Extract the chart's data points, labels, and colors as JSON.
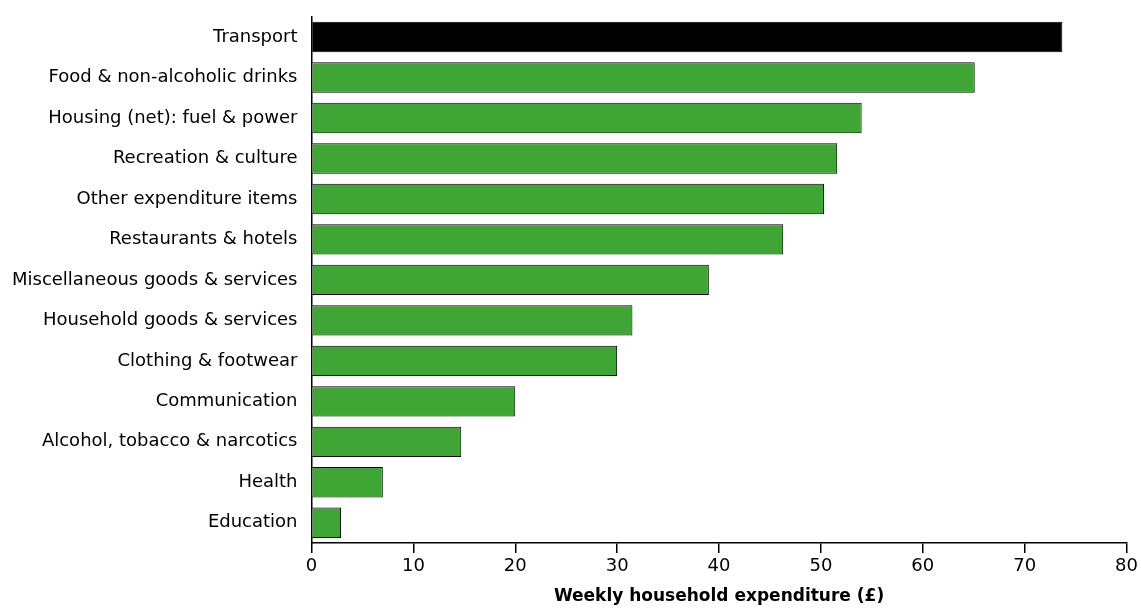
{
  "chart_data": {
    "type": "bar",
    "orientation": "horizontal",
    "xlabel": "Weekly household expenditure (£)",
    "categories": [
      "Transport",
      "Food & non-alcoholic drinks",
      "Housing (net): fuel & power",
      "Recreation & culture",
      "Other expenditure items",
      "Restaurants & hotels",
      "Miscellaneous goods & services",
      "Household goods & services",
      "Clothing & footwear",
      "Communication",
      "Alcohol, tobacco & narcotics",
      "Health",
      "Education"
    ],
    "values": [
      73.7,
      65.1,
      54.0,
      51.6,
      50.3,
      46.3,
      39.0,
      31.5,
      30.0,
      20.0,
      14.7,
      7.0,
      2.9
    ],
    "colors": [
      "#000000",
      "#3fa535",
      "#3fa535",
      "#3fa535",
      "#3fa535",
      "#3fa535",
      "#3fa535",
      "#3fa535",
      "#3fa535",
      "#3fa535",
      "#3fa535",
      "#3fa535",
      "#3fa535"
    ],
    "xlim": [
      0,
      80
    ],
    "xticks": [
      0,
      10,
      20,
      30,
      40,
      50,
      60,
      70,
      80
    ],
    "grid": false,
    "legend": false
  }
}
